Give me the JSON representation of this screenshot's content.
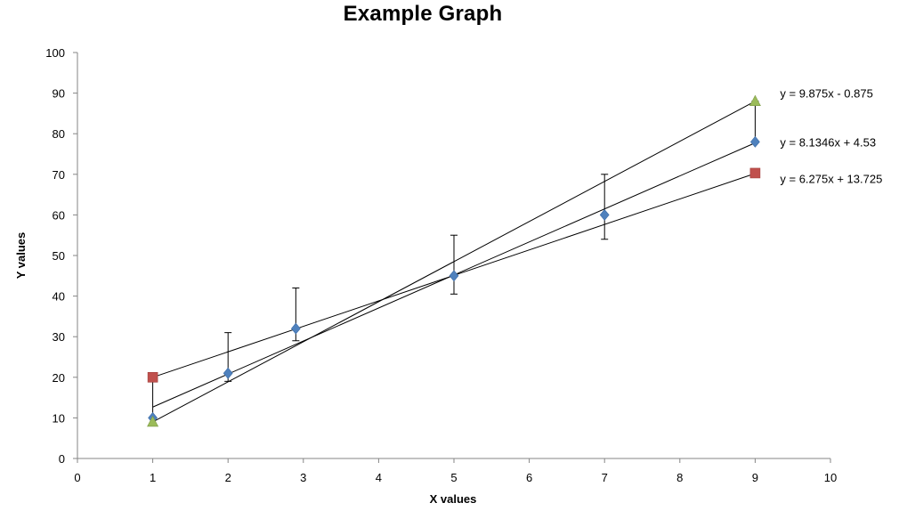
{
  "chart_data": {
    "type": "scatter",
    "title": "Example Graph",
    "xlabel": "X values",
    "ylabel": "Y values",
    "xlim": [
      0,
      10
    ],
    "ylim": [
      0,
      100
    ],
    "x_ticks": [
      0,
      1,
      2,
      3,
      4,
      5,
      6,
      7,
      8,
      9,
      10
    ],
    "y_ticks": [
      0,
      10,
      20,
      30,
      40,
      50,
      60,
      70,
      80,
      90,
      100
    ],
    "grid": false,
    "legend": "none",
    "series": [
      {
        "marker": "diamond",
        "color": "#4f81bd",
        "x": [
          1,
          2,
          2.9,
          5,
          7,
          9
        ],
        "y": [
          10,
          21,
          32,
          45,
          60,
          78
        ],
        "error_bars": [
          {
            "x": 1,
            "low": 10,
            "high": 10
          },
          {
            "x": 2,
            "low": 19,
            "high": 31
          },
          {
            "x": 2.9,
            "low": 29,
            "high": 42
          },
          {
            "x": 5,
            "low": 40.5,
            "high": 55
          },
          {
            "x": 7,
            "low": 54,
            "high": 70
          },
          {
            "x": 9,
            "low": 78,
            "high": 78
          }
        ],
        "trendline": {
          "slope": 8.1346,
          "intercept": 4.53,
          "label": "y = 8.1346x + 4.53",
          "label_at": [
            9,
            78
          ]
        }
      },
      {
        "marker": "square",
        "color": "#c0504d",
        "x": [
          1,
          9
        ],
        "y": [
          20,
          70.3
        ],
        "error_bars": [
          {
            "x": 1,
            "low": 10,
            "high": 20
          }
        ],
        "trendline": {
          "slope": 6.275,
          "intercept": 13.725,
          "label": "y = 6.275x + 13.725",
          "label_at": [
            9,
            69
          ]
        }
      },
      {
        "marker": "triangle",
        "color": "#9bbb59",
        "x": [
          1,
          9
        ],
        "y": [
          9,
          88
        ],
        "error_bars": [
          {
            "x": 9,
            "low": 78,
            "high": 88
          }
        ],
        "trendline": {
          "slope": 9.875,
          "intercept": -0.875,
          "label": "y = 9.875x - 0.875",
          "label_at": [
            9,
            90
          ]
        }
      }
    ]
  }
}
